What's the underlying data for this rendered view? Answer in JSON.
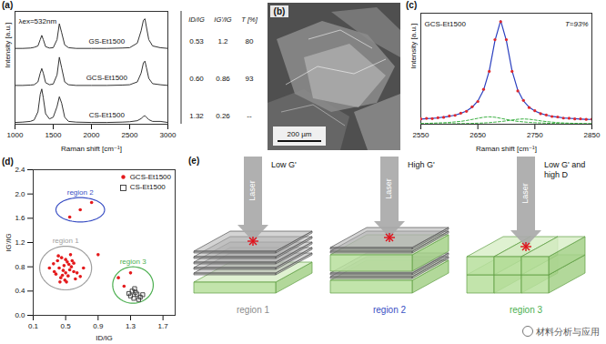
{
  "chart_data": [
    {
      "panel": "(a)",
      "type": "line",
      "annotation": "λex=532nm",
      "xlabel": "Raman shift [cm⁻¹]",
      "ylabel": "Intensity [a.u.]",
      "x": [
        1000,
        1100,
        1200,
        1250,
        1300,
        1330,
        1350,
        1370,
        1400,
        1450,
        1500,
        1550,
        1580,
        1610,
        1650,
        1700,
        1800,
        2000,
        2200,
        2400,
        2500,
        2600,
        2650,
        2680,
        2700,
        2720,
        2750,
        2800,
        2900,
        3000
      ],
      "series": [
        {
          "name": "GS-Et1500",
          "color": "#333333",
          "values": [
            2.15,
            2.15,
            2.16,
            2.18,
            2.22,
            2.4,
            2.52,
            2.4,
            2.2,
            2.16,
            2.17,
            2.4,
            2.85,
            2.6,
            2.25,
            2.17,
            2.15,
            2.15,
            2.15,
            2.16,
            2.17,
            2.3,
            2.65,
            2.95,
            2.99,
            2.75,
            2.4,
            2.22,
            2.17,
            2.15
          ]
        },
        {
          "name": "GCS-Et1500",
          "color": "#333333",
          "values": [
            1.1,
            1.1,
            1.11,
            1.12,
            1.2,
            1.45,
            1.58,
            1.45,
            1.18,
            1.12,
            1.14,
            1.4,
            1.9,
            1.6,
            1.2,
            1.12,
            1.1,
            1.1,
            1.1,
            1.11,
            1.12,
            1.2,
            1.45,
            1.74,
            1.79,
            1.6,
            1.3,
            1.15,
            1.12,
            1.1
          ]
        },
        {
          "name": "CS-Et1500",
          "color": "#333333",
          "values": [
            0.05,
            0.06,
            0.08,
            0.12,
            0.35,
            0.85,
            1.0,
            0.75,
            0.3,
            0.15,
            0.2,
            0.5,
            0.78,
            0.6,
            0.2,
            0.08,
            0.06,
            0.05,
            0.05,
            0.06,
            0.07,
            0.1,
            0.16,
            0.22,
            0.24,
            0.2,
            0.13,
            0.08,
            0.08,
            0.05
          ]
        }
      ],
      "xlim": [
        1000,
        3000
      ],
      "xticks": [
        1000,
        1500,
        2000,
        2500,
        3000
      ],
      "ylim": [
        0,
        3.2
      ],
      "tick_labels": "x"
    },
    {
      "panel": "(c)",
      "type": "line",
      "title": "GCS-Et1500",
      "annotation": "T=93%",
      "xlabel": "Raman shift [cm⁻¹]",
      "ylabel": "Intensity [a.u.]",
      "x": [
        2550,
        2560,
        2570,
        2580,
        2590,
        2600,
        2610,
        2620,
        2630,
        2640,
        2650,
        2660,
        2670,
        2680,
        2690,
        2700,
        2710,
        2720,
        2730,
        2740,
        2750,
        2760,
        2770,
        2780,
        2790,
        2800,
        2810,
        2820,
        2830,
        2840,
        2850
      ],
      "series": [
        {
          "type": "line",
          "color": "#3cb043",
          "line_style": "dashed",
          "values": [
            0.007,
            0.008,
            0.01,
            0.012,
            0.014,
            0.017,
            0.022,
            0.027,
            0.035,
            0.045,
            0.056,
            0.066,
            0.07,
            0.066,
            0.056,
            0.045,
            0.035,
            0.027,
            0.022,
            0.017,
            0.014,
            0.012,
            0.01,
            0.008,
            0.007,
            0.006,
            0.005,
            0.005,
            0.004,
            0.004,
            0.003
          ]
        },
        {
          "type": "line",
          "color": "#3cb043",
          "line_style": "dashed",
          "values": [
            0.002,
            0.003,
            0.003,
            0.003,
            0.004,
            0.004,
            0.005,
            0.006,
            0.007,
            0.008,
            0.01,
            0.012,
            0.015,
            0.02,
            0.025,
            0.032,
            0.04,
            0.047,
            0.05,
            0.047,
            0.04,
            0.032,
            0.025,
            0.02,
            0.015,
            0.012,
            0.01,
            0.008,
            0.007,
            0.006,
            0.005
          ]
        },
        {
          "type": "line",
          "color": "#2a3fbf",
          "line_style": "solid",
          "values": [
            0.049,
            0.052,
            0.056,
            0.06,
            0.067,
            0.075,
            0.086,
            0.102,
            0.125,
            0.161,
            0.22,
            0.322,
            0.505,
            0.79,
            0.98,
            0.79,
            0.505,
            0.322,
            0.22,
            0.161,
            0.125,
            0.102,
            0.086,
            0.075,
            0.067,
            0.06,
            0.056,
            0.052,
            0.049,
            0.047,
            0.045
          ]
        },
        {
          "type": "scatter",
          "color": "#e0282e",
          "marker": "circle",
          "values": [
            0.05,
            0.055,
            0.053,
            0.062,
            0.065,
            0.078,
            0.084,
            0.105,
            0.122,
            0.165,
            0.215,
            0.33,
            0.5,
            0.8,
            0.97,
            0.8,
            0.5,
            0.315,
            0.225,
            0.158,
            0.128,
            0.1,
            0.088,
            0.073,
            0.069,
            0.058,
            0.057,
            0.05,
            0.051,
            0.046,
            0.047
          ]
        }
      ],
      "xlim": [
        2550,
        2850
      ],
      "xticks": [
        2550,
        2650,
        2750,
        2850
      ],
      "ylim": [
        0,
        1.05
      ],
      "tick_labels": "x"
    },
    {
      "panel": "(d)",
      "type": "scatter",
      "xlabel": "ID/IG",
      "ylabel": "IG'/IG",
      "legend": "top-right",
      "series": [
        {
          "name": "GCS-Et1500",
          "color": "#e41a1c",
          "marker": "circle",
          "x": [
            0.35,
            0.4,
            0.42,
            0.45,
            0.48,
            0.5,
            0.52,
            0.55,
            0.38,
            0.44,
            0.47,
            0.5,
            0.53,
            0.57,
            0.6,
            0.62,
            0.3,
            0.36,
            0.41,
            0.46,
            0.49,
            0.54,
            0.58,
            0.64,
            0.68,
            0.72,
            0.43,
            0.51,
            0.56,
            0.6,
            0.55,
            0.68,
            0.82,
            1.15,
            1.22,
            1.3,
            0.9
          ],
          "values": [
            0.85,
            0.9,
            0.78,
            0.95,
            0.82,
            0.7,
            0.88,
            0.75,
            0.68,
            0.62,
            0.74,
            0.92,
            0.65,
            0.8,
            0.72,
            0.6,
            0.78,
            0.72,
            0.98,
            0.66,
            0.58,
            0.84,
            0.9,
            0.7,
            0.64,
            0.78,
            0.55,
            0.55,
            1.0,
            0.86,
            1.62,
            1.74,
            1.86,
            0.62,
            0.48,
            0.7,
            1.0
          ]
        },
        {
          "name": "CS-Et1500",
          "color": "#333333",
          "marker": "square",
          "x": [
            1.3,
            1.34,
            1.38,
            1.42,
            1.32,
            1.36,
            1.4,
            1.45,
            1.35,
            1.28
          ],
          "values": [
            0.32,
            0.28,
            0.35,
            0.3,
            0.4,
            0.38,
            0.26,
            0.34,
            0.44,
            0.36
          ]
        }
      ],
      "regions": [
        {
          "label": "region 1",
          "color": "#a0a0a0",
          "center": [
            0.5,
            0.78
          ],
          "radii": [
            0.32,
            0.36
          ]
        },
        {
          "label": "region 2",
          "color": "#3a4fc4",
          "center": [
            0.68,
            1.74
          ],
          "radii": [
            0.3,
            0.2
          ]
        },
        {
          "label": "region 3",
          "color": "#4caf50",
          "center": [
            1.33,
            0.5
          ],
          "radii": [
            0.25,
            0.3
          ]
        }
      ],
      "xlim": [
        0.1,
        1.85
      ],
      "xticks": [
        0.1,
        0.5,
        0.9,
        1.3,
        1.7
      ],
      "ylim": [
        0,
        2.4
      ],
      "yticks": [
        {
          "value": 0,
          "label": "0.0"
        },
        0.4,
        0.8,
        1.2,
        1.6,
        {
          "value": 2,
          "label": "2.0"
        },
        2.4
      ]
    }
  ],
  "table": {
    "columns": [
      "ID/IG",
      "IG'/IG",
      "T [%]"
    ],
    "rows": [
      [
        "0.53",
        "1.2",
        "80"
      ],
      [
        "0.60",
        "0.86",
        "93"
      ],
      [
        "1.32",
        "0.26",
        "--"
      ]
    ]
  },
  "image": {
    "panel": "(b)",
    "scale_bar": "200 µm"
  },
  "diagram": {
    "panel": "(e)",
    "arrow_label": "Laser",
    "items": [
      {
        "caption": "Low G'",
        "label": "region 1",
        "color": "#8c8c8c"
      },
      {
        "caption": "High G'",
        "label": "region 2",
        "color": "#3a4fc4"
      },
      {
        "caption": "Low G' and high D",
        "label": "region 3",
        "color": "#4caf50"
      }
    ]
  },
  "watermark": "材料分析与应用"
}
